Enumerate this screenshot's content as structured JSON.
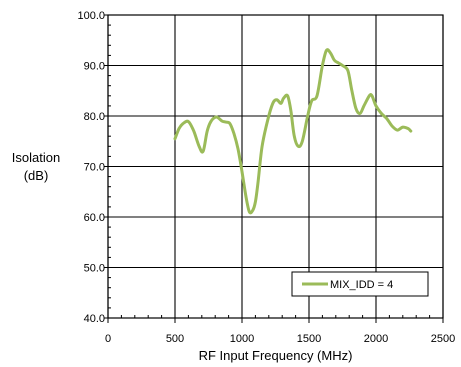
{
  "chart_data": {
    "type": "line",
    "title": "",
    "xlabel": "RF Input Frequency (MHz)",
    "ylabel": "Isolation\n(dB)",
    "xlim": [
      0,
      2500
    ],
    "ylim": [
      40,
      100
    ],
    "x_ticks": [
      0,
      500,
      1000,
      1500,
      2000,
      2500
    ],
    "y_ticks": [
      40,
      50,
      60,
      70,
      80,
      90,
      100
    ],
    "x_tick_labels": [
      "0",
      "500",
      "1000",
      "1500",
      "2000",
      "2500"
    ],
    "y_tick_labels": [
      "40.0",
      "50.0",
      "60.0",
      "70.0",
      "80.0",
      "90.0",
      "100.0"
    ],
    "grid": true,
    "legend": {
      "placement": "bottom-right"
    },
    "series": [
      {
        "name": "MIX_IDD = 4",
        "color": "#9BBB59",
        "x": [
          500,
          530,
          560,
          600,
          640,
          680,
          710,
          740,
          770,
          810,
          850,
          880,
          910,
          940,
          970,
          1000,
          1030,
          1055,
          1080,
          1100,
          1120,
          1150,
          1190,
          1230,
          1260,
          1290,
          1310,
          1340,
          1365,
          1390,
          1420,
          1450,
          1490,
          1520,
          1560,
          1600,
          1630,
          1660,
          1690,
          1720,
          1750,
          1790,
          1820,
          1850,
          1880,
          1910,
          1950,
          1970,
          2000,
          2040,
          2080,
          2120,
          2160,
          2200,
          2240,
          2260
        ],
        "y": [
          75.5,
          77.5,
          78.5,
          78.9,
          77,
          74,
          73,
          77,
          79,
          79.8,
          79,
          78.8,
          78.5,
          76.5,
          73.5,
          69,
          64,
          61,
          61.3,
          63,
          67,
          74,
          79,
          82.5,
          83.2,
          82.5,
          83.5,
          84,
          81,
          76,
          74,
          75,
          80,
          83,
          84,
          90,
          93,
          92.5,
          91,
          90.5,
          90,
          89,
          85,
          81.5,
          80.5,
          82,
          84,
          84,
          82,
          80.5,
          79.5,
          78,
          77.2,
          77.8,
          77.5,
          77
        ]
      }
    ]
  }
}
